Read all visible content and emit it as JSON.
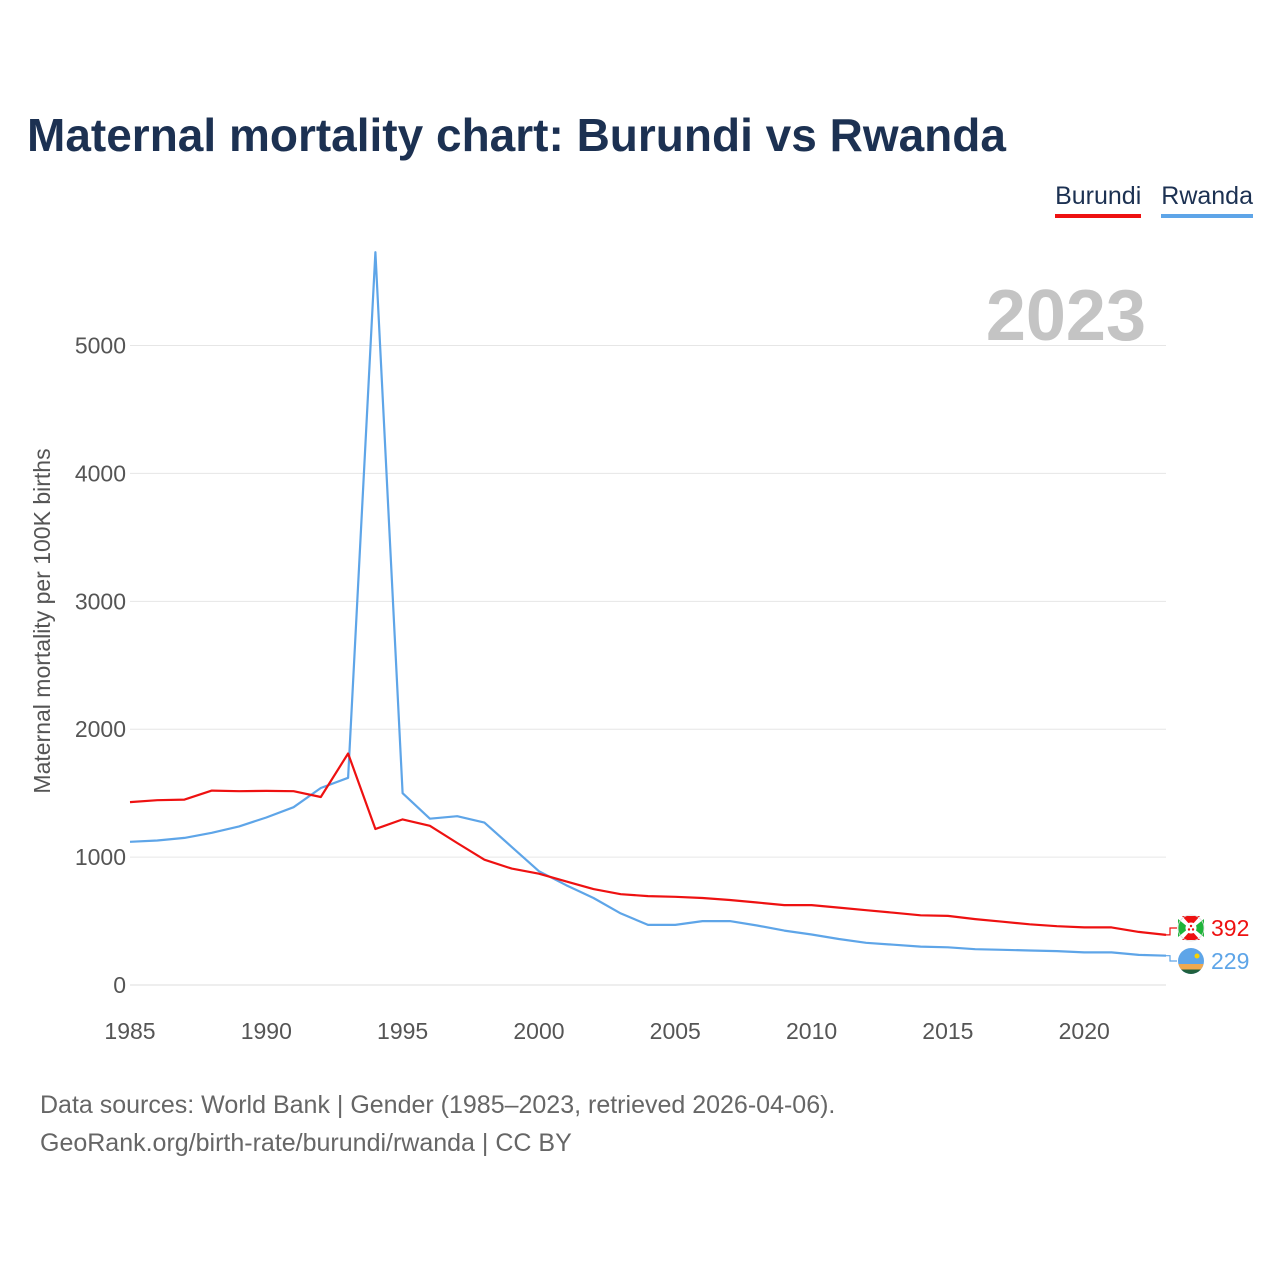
{
  "title": "Maternal mortality chart: Burundi vs Rwanda",
  "legend": [
    {
      "label": "Burundi",
      "color": "#ee1111"
    },
    {
      "label": "Rwanda",
      "color": "#5ea5e8"
    }
  ],
  "footer": {
    "source": "Data sources: World Bank | Gender (1985–2023, retrieved 2026-04-06).",
    "credit": "GeoRank.org/birth-rate/burundi/rwanda | CC BY"
  },
  "chart_data": {
    "type": "line",
    "year_label": "2023",
    "ylabel": "Maternal mortality per 100K births",
    "xlabel": "",
    "xlim": [
      1985,
      2023
    ],
    "ylim": [
      0,
      5700
    ],
    "x_ticks": [
      1985,
      1990,
      1995,
      2000,
      2005,
      2010,
      2015,
      2020
    ],
    "y_ticks": [
      0,
      1000,
      2000,
      3000,
      4000,
      5000
    ],
    "grid": true,
    "x": [
      1985,
      1986,
      1987,
      1988,
      1989,
      1990,
      1991,
      1992,
      1993,
      1994,
      1995,
      1996,
      1997,
      1998,
      1999,
      2000,
      2001,
      2002,
      2003,
      2004,
      2005,
      2006,
      2007,
      2008,
      2009,
      2010,
      2011,
      2012,
      2013,
      2014,
      2015,
      2016,
      2017,
      2018,
      2019,
      2020,
      2021,
      2022,
      2023
    ],
    "series": [
      {
        "name": "Burundi",
        "color": "#ee1111",
        "end_label": "392",
        "values": [
          1430,
          1445,
          1450,
          1520,
          1515,
          1518,
          1515,
          1470,
          1810,
          1220,
          1295,
          1245,
          1110,
          980,
          910,
          870,
          810,
          750,
          710,
          695,
          690,
          680,
          665,
          645,
          625,
          625,
          605,
          585,
          565,
          545,
          540,
          515,
          495,
          475,
          460,
          450,
          450,
          415,
          392
        ]
      },
      {
        "name": "Rwanda",
        "color": "#5ea5e8",
        "end_label": "229",
        "values": [
          1120,
          1130,
          1150,
          1190,
          1240,
          1310,
          1390,
          1540,
          1620,
          5730,
          1500,
          1300,
          1320,
          1270,
          1080,
          890,
          780,
          680,
          560,
          470,
          470,
          500,
          500,
          465,
          425,
          395,
          360,
          330,
          315,
          300,
          295,
          280,
          275,
          270,
          265,
          255,
          255,
          235,
          229
        ]
      }
    ]
  }
}
